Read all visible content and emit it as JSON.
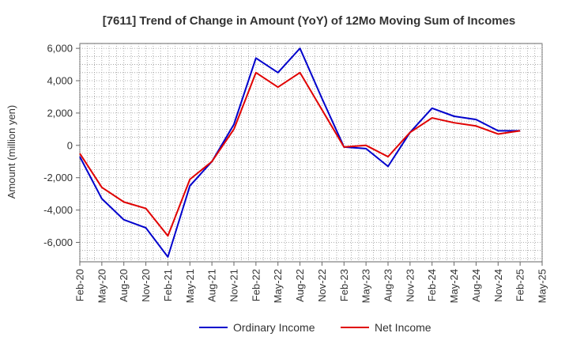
{
  "chart_data": {
    "type": "line",
    "title": "[7611]  Trend of Change in Amount (YoY) of 12Mo Moving Sum of Incomes",
    "xlabel": "",
    "ylabel": "Amount (million yen)",
    "ylim": [
      -7200,
      6300
    ],
    "yticks": [
      -6000,
      -4000,
      -2000,
      0,
      2000,
      4000,
      6000
    ],
    "ytick_labels": [
      "-6,000",
      "-4,000",
      "-2,000",
      "0",
      "2,000",
      "4,000",
      "6,000"
    ],
    "categories": [
      "Feb-20",
      "May-20",
      "Aug-20",
      "Nov-20",
      "Feb-21",
      "May-21",
      "Aug-21",
      "Nov-21",
      "Feb-22",
      "May-22",
      "Aug-22",
      "Nov-22",
      "Feb-23",
      "May-23",
      "Aug-23",
      "Nov-23",
      "Feb-24",
      "May-24",
      "Aug-24",
      "Nov-24",
      "Feb-25",
      "May-25"
    ],
    "grid": true,
    "legend": "bottom",
    "series": [
      {
        "name": "Ordinary Income",
        "color": "#0000cc",
        "values": [
          -700,
          -3300,
          -4600,
          -5100,
          -6900,
          -2500,
          -1000,
          1300,
          5400,
          4500,
          6000,
          2900,
          -100,
          -200,
          -1300,
          800,
          2300,
          1800,
          1600,
          900,
          900,
          null
        ]
      },
      {
        "name": "Net Income",
        "color": "#e00000",
        "values": [
          -500,
          -2600,
          -3500,
          -3900,
          -5600,
          -2100,
          -1000,
          1000,
          4500,
          3600,
          4500,
          2200,
          -100,
          0,
          -700,
          800,
          1700,
          1400,
          1200,
          700,
          900,
          null
        ]
      }
    ]
  }
}
